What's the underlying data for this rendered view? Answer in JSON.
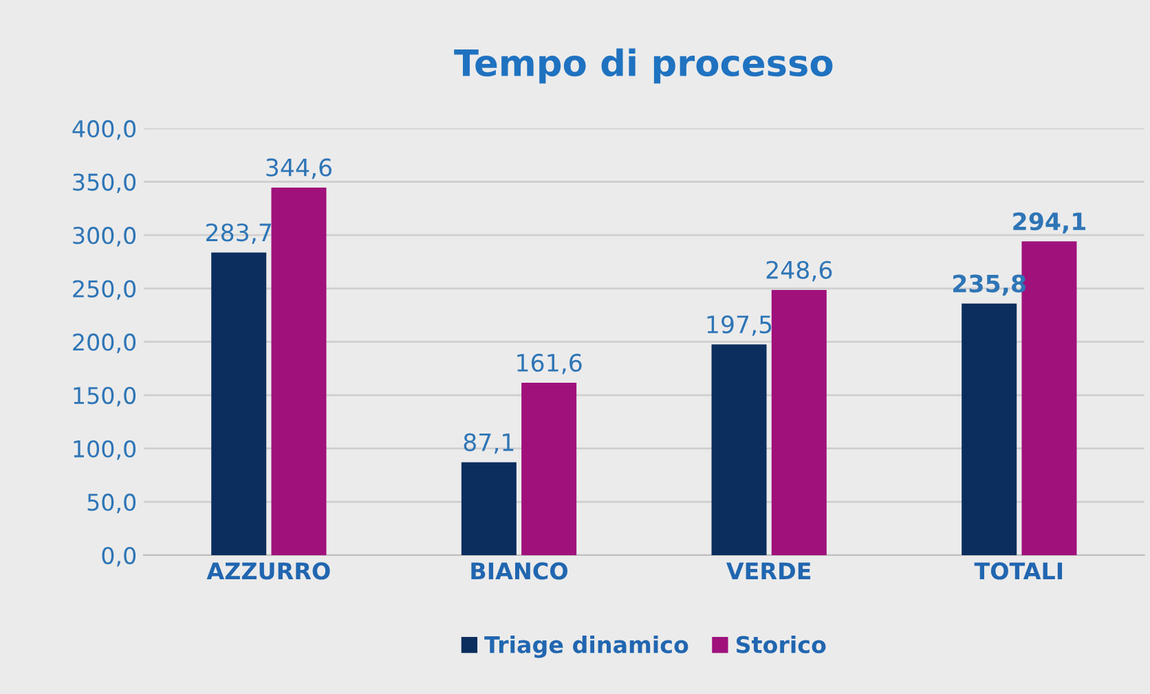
{
  "chart_data": {
    "type": "bar",
    "title": "Tempo di processo",
    "categories": [
      "AZZURRO",
      "BIANCO",
      "VERDE",
      "TOTALI"
    ],
    "series": [
      {
        "name": "Triage dinamico",
        "color": "#0b2e5e",
        "values": [
          283.7,
          87.1,
          197.5,
          235.8
        ],
        "value_labels": [
          "283,7",
          "87,1",
          "197,5",
          "235,8"
        ]
      },
      {
        "name": "Storico",
        "color": "#a0117c",
        "values": [
          344.6,
          161.6,
          248.6,
          294.1
        ],
        "value_labels": [
          "344,6",
          "161,6",
          "248,6",
          "294,1"
        ]
      }
    ],
    "ylim": [
      0,
      400
    ],
    "yticks": [
      {
        "value": 0,
        "label": "0,0"
      },
      {
        "value": 50,
        "label": "50,0"
      },
      {
        "value": 100,
        "label": "100,0"
      },
      {
        "value": 150,
        "label": "150,0"
      },
      {
        "value": 200,
        "label": "200,0"
      },
      {
        "value": 250,
        "label": "250,0"
      },
      {
        "value": 300,
        "label": "300,0"
      },
      {
        "value": 350,
        "label": "350,0"
      },
      {
        "value": 400,
        "label": "400,0"
      }
    ],
    "grid": "y",
    "legend": "bottom"
  }
}
